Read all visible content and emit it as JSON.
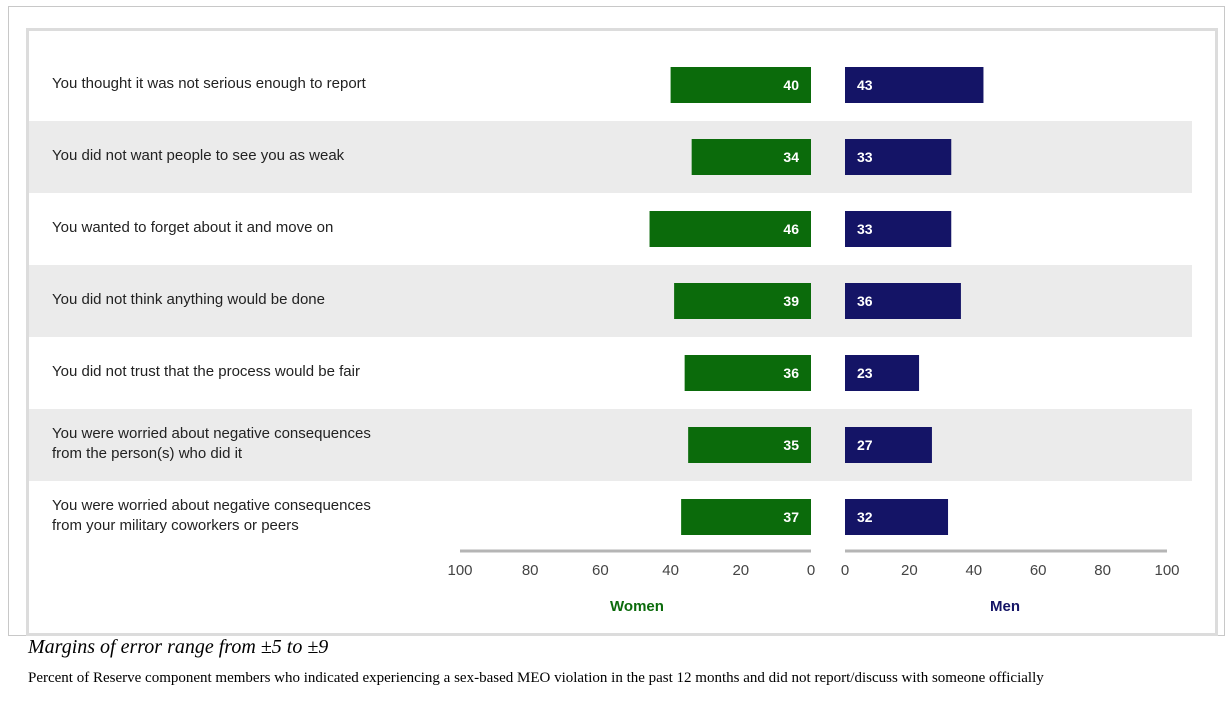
{
  "chart_data": {
    "type": "bar",
    "orientation": "horizontal-butterfly",
    "categories": [
      [
        "You thought  it was  not serious enough to  report"
      ],
      [
        "You did not want people to see you as weak"
      ],
      [
        "You wanted to forget about  it and move  on"
      ],
      [
        "You did not think anything would be done"
      ],
      [
        "You did not trust that the process would be fair"
      ],
      [
        "You were worried about negative consequences",
        "from the person(s) who did it"
      ],
      [
        "You were worried about negative consequences",
        "from your military coworkers or peers"
      ]
    ],
    "series": [
      {
        "name": "Women",
        "values": [
          40,
          34,
          46,
          39,
          36,
          35,
          37
        ],
        "color": "#0b6b0b"
      },
      {
        "name": "Men",
        "values": [
          43,
          33,
          33,
          36,
          23,
          27,
          32
        ],
        "color": "#141466"
      }
    ],
    "left_ticks": [
      "100",
      "80",
      "60",
      "40",
      "20",
      "0"
    ],
    "right_ticks": [
      "0",
      "20",
      "40",
      "60",
      "80",
      "100"
    ],
    "xlim": [
      0,
      100
    ],
    "stripe_color": "#ebebeb"
  },
  "footer": {
    "margins_text": "Margins of error range from ±5 to ±9",
    "note_text": "Percent of Reserve component members who indicated  experiencing  a sex-based MEO violation  in the past 12 months and did not report/discuss  with someone officially"
  }
}
